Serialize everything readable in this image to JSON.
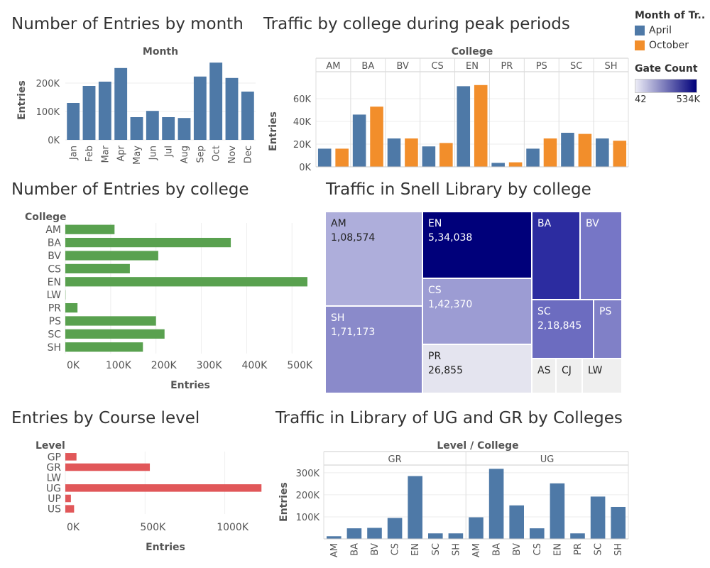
{
  "titles": {
    "entries_by_month": "Number of Entries by month",
    "traffic_peak": "Traffic by college during peak periods",
    "entries_by_college": "Number of Entries by college",
    "snell_library": "Traffic in Snell Library by college",
    "course_level": "Entries by Course level",
    "ug_gr": "Traffic in Library of UG and GR by Colleges"
  },
  "legend": {
    "month_title": "Month of Tr..",
    "items": [
      {
        "label": "April",
        "color": "#4e79a7"
      },
      {
        "label": "October",
        "color": "#f28e2b"
      }
    ],
    "gate_title": "Gate Count",
    "gate_min": "42",
    "gate_max": "534K"
  },
  "chart_data": [
    {
      "id": "month",
      "type": "bar",
      "title": "Number of Entries by month",
      "xlabel": "Month",
      "ylabel": "Entries",
      "color": "#4e79a7",
      "categories": [
        "Jan",
        "Feb",
        "Mar",
        "Apr",
        "May",
        "Jun",
        "Jul",
        "Aug",
        "Sep",
        "Oct",
        "Nov",
        "Dec"
      ],
      "values": [
        130000,
        190000,
        205000,
        253000,
        80000,
        102000,
        80000,
        77000,
        223000,
        272000,
        218000,
        170000
      ],
      "yticks": [
        {
          "v": 0,
          "label": "0K"
        },
        {
          "v": 100000,
          "label": "100K"
        },
        {
          "v": 200000,
          "label": "200K"
        }
      ],
      "ylim": [
        0,
        280000
      ]
    },
    {
      "id": "peak",
      "type": "bar",
      "title": "Traffic by college during peak periods",
      "xlabel": "College",
      "ylabel": "Entries",
      "categories": [
        "AM",
        "BA",
        "BV",
        "CS",
        "EN",
        "PR",
        "PS",
        "SC",
        "SH"
      ],
      "series": [
        {
          "name": "April",
          "color": "#4e79a7",
          "values": [
            16000,
            46000,
            25000,
            18000,
            71000,
            3500,
            16000,
            30000,
            25000
          ]
        },
        {
          "name": "October",
          "color": "#f28e2b",
          "values": [
            16000,
            53000,
            25000,
            21000,
            72000,
            4000,
            25000,
            29000,
            23000
          ]
        }
      ],
      "yticks": [
        {
          "v": 0,
          "label": "0K"
        },
        {
          "v": 20000,
          "label": "20K"
        },
        {
          "v": 40000,
          "label": "40K"
        },
        {
          "v": 60000,
          "label": "60K"
        }
      ],
      "ylim": [
        0,
        75000
      ]
    },
    {
      "id": "college",
      "type": "bar",
      "orientation": "horizontal",
      "title": "Number of Entries by college",
      "xlabel": "Entries",
      "ylabel": "College",
      "color": "#59a14f",
      "categories": [
        "AM",
        "BA",
        "BV",
        "CS",
        "EN",
        "LW",
        "PR",
        "PS",
        "SC",
        "SH"
      ],
      "values": [
        108574,
        365000,
        205000,
        142370,
        534038,
        500,
        26855,
        200000,
        218845,
        171173
      ],
      "xticks": [
        {
          "v": 0,
          "label": "0K"
        },
        {
          "v": 100000,
          "label": "100K"
        },
        {
          "v": 200000,
          "label": "200K"
        },
        {
          "v": 300000,
          "label": "300K"
        },
        {
          "v": 400000,
          "label": "400K"
        },
        {
          "v": 500000,
          "label": "500K"
        }
      ],
      "xlim": [
        0,
        545000
      ]
    },
    {
      "id": "treemap",
      "type": "treemap",
      "title": "Traffic in Snell Library by college",
      "items": [
        {
          "label": "AM",
          "value": "1,08,574",
          "color": "#aeaedb",
          "text": "#222222"
        },
        {
          "label": "EN",
          "value": "5,34,038",
          "color": "#00007a",
          "text": "#ffffff"
        },
        {
          "label": "BA",
          "value": "",
          "color": "#2c2ca0",
          "text": "#ffffff"
        },
        {
          "label": "BV",
          "value": "",
          "color": "#7676c6",
          "text": "#ffffff"
        },
        {
          "label": "CS",
          "value": "1,42,370",
          "color": "#9c9cd3",
          "text": "#ffffff"
        },
        {
          "label": "SH",
          "value": "1,71,173",
          "color": "#8a8aca",
          "text": "#ffffff"
        },
        {
          "label": "SC",
          "value": "2,18,845",
          "color": "#6c6cc0",
          "text": "#ffffff"
        },
        {
          "label": "PS",
          "value": "",
          "color": "#8080c7",
          "text": "#ffffff"
        },
        {
          "label": "PR",
          "value": "26,855",
          "color": "#e4e4ef",
          "text": "#222222"
        },
        {
          "label": "AS",
          "value": "",
          "color": "#efefef",
          "text": "#222222"
        },
        {
          "label": "CJ",
          "value": "",
          "color": "#efefef",
          "text": "#222222"
        },
        {
          "label": "LW",
          "value": "",
          "color": "#efefef",
          "text": "#222222"
        }
      ]
    },
    {
      "id": "level",
      "type": "bar",
      "orientation": "horizontal",
      "title": "Entries by Course level",
      "xlabel": "Entries",
      "ylabel": "Level",
      "color": "#e15759",
      "categories": [
        "GP",
        "GR",
        "LW",
        "UG",
        "UP",
        "US"
      ],
      "values": [
        70000,
        530000,
        0,
        1230000,
        35000,
        55000
      ],
      "xticks": [
        {
          "v": 0,
          "label": "0K"
        },
        {
          "v": 500000,
          "label": "500K"
        },
        {
          "v": 1000000,
          "label": "1000K"
        }
      ],
      "xlim": [
        0,
        1260000
      ]
    },
    {
      "id": "uggr",
      "type": "bar",
      "title": "Traffic in Library of UG and GR by Colleges",
      "xlabel": "Level / College",
      "ylabel": "Entries",
      "color": "#4e79a7",
      "groups": [
        {
          "name": "GR",
          "categories": [
            "AM",
            "BA",
            "BV",
            "CS",
            "EN",
            "SC",
            "SH"
          ],
          "values": [
            12000,
            48000,
            50000,
            95000,
            285000,
            25000,
            25000
          ]
        },
        {
          "name": "UG",
          "categories": [
            "AM",
            "BA",
            "BV",
            "CS",
            "EN",
            "PR",
            "SC",
            "SH"
          ],
          "values": [
            98000,
            318000,
            152000,
            48000,
            252000,
            25000,
            192000,
            145000
          ]
        }
      ],
      "yticks": [
        {
          "v": 100000,
          "label": "100K"
        },
        {
          "v": 200000,
          "label": "200K"
        },
        {
          "v": 300000,
          "label": "300K"
        }
      ],
      "ylim": [
        0,
        335000
      ]
    }
  ]
}
